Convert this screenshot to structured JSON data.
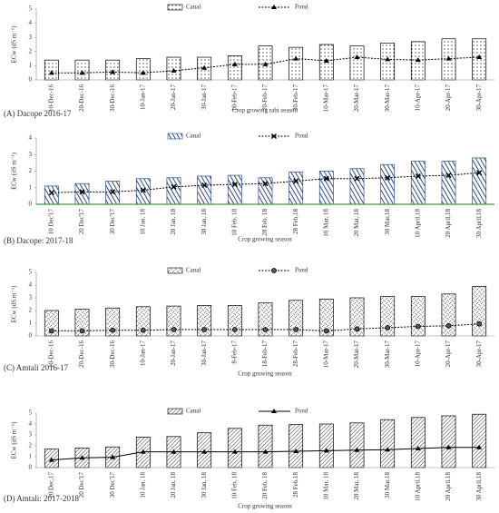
{
  "chart_data": [
    {
      "type": "combo",
      "panel_label": "(A) Dacope 2016-17",
      "y_label": "ECw (dS m⁻¹)",
      "x_label": "Crop growing rabi season",
      "categories": [
        "10-Dec-16",
        "20-Dec-16",
        "30-Dec-16",
        "10-Jan-17",
        "20-Jan-17",
        "30-Jan-17",
        "10-Feb-17",
        "20-Feb-17",
        "30-Feb-17",
        "10-Mar-17",
        "20-Mar-17",
        "30-Mar-17",
        "10-Apr-17",
        "20-Apr-17",
        "30-Apr-17"
      ],
      "ylim": [
        0,
        5
      ],
      "yticks": [
        0,
        1,
        2,
        3,
        4,
        5
      ],
      "bar_pattern": "dots",
      "marker": "triangle",
      "line_style": "dotted",
      "series": [
        {
          "name": "Canal",
          "color": "#000000",
          "values": [
            1.4,
            1.4,
            1.4,
            1.5,
            1.6,
            1.6,
            1.7,
            2.4,
            2.3,
            2.5,
            2.4,
            2.6,
            2.7,
            2.9,
            2.9
          ]
        },
        {
          "name": "Pond",
          "color": "#000000",
          "values": [
            0.5,
            0.5,
            0.55,
            0.5,
            0.65,
            0.85,
            1.1,
            1.1,
            1.5,
            1.35,
            1.6,
            1.45,
            1.4,
            1.5,
            1.6
          ]
        }
      ]
    },
    {
      "type": "combo",
      "panel_label": "(B) Dacope: 2017-18",
      "y_label": "ECw (dS m⁻¹)",
      "x_label": "Crop growing season",
      "categories": [
        "10 Dec'17",
        "20 Dec'17",
        "30 Dec'17",
        "10 Jan, 18",
        "20 Jan, 18",
        "30 Jan, 18",
        "10 Feb, 18",
        "20 Feb, 18",
        "28 Feb,18",
        "10 Mar, 18",
        "20 Mar, 18",
        "30 Mar,18",
        "10 April,18",
        "20 April,18",
        "30 April,18"
      ],
      "ylim": [
        0,
        4
      ],
      "yticks": [
        0,
        1,
        2,
        3,
        4
      ],
      "bar_pattern": "hlines",
      "marker": "cross",
      "line_style": "dotted",
      "axis_color": "#3a9a3a",
      "series": [
        {
          "name": "Canal",
          "color": "#2d4b8c",
          "values": [
            1.1,
            1.25,
            1.4,
            1.55,
            1.6,
            1.7,
            1.75,
            1.6,
            1.95,
            2.0,
            2.15,
            2.4,
            2.6,
            2.6,
            2.8
          ]
        },
        {
          "name": "Pond",
          "color": "#000000",
          "values": [
            0.7,
            0.75,
            0.75,
            0.85,
            1.05,
            1.15,
            1.2,
            1.25,
            1.4,
            1.55,
            1.55,
            1.6,
            1.7,
            1.75,
            1.9
          ]
        }
      ]
    },
    {
      "type": "combo",
      "panel_label": "(C) Amtali 2016-17",
      "y_label": "ECw (dS m⁻¹)",
      "x_label": "Crop growing season",
      "categories": [
        "10-Dec-16",
        "20-Dec-16",
        "30-Dec-16",
        "10-Jan-17",
        "20-Jan-17",
        "30-Jan-17",
        "8-Feb-17",
        "18-Feb-17",
        "28-Feb-17",
        "10-Mar-17",
        "20-Mar-17",
        "30-Mar-17",
        "10-Apr-17",
        "20-Apr-17",
        "30-Apr-17"
      ],
      "ylim": [
        0,
        5
      ],
      "yticks": [
        0,
        1,
        2,
        3,
        4,
        5
      ],
      "bar_pattern": "cross",
      "marker": "circle",
      "line_style": "dotted",
      "series": [
        {
          "name": "Canal",
          "color": "#000000",
          "values": [
            2.0,
            2.1,
            2.2,
            2.3,
            2.35,
            2.4,
            2.4,
            2.6,
            2.8,
            2.9,
            3.0,
            3.1,
            3.1,
            3.3,
            3.9
          ]
        },
        {
          "name": "Pond",
          "color": "#000000",
          "values": [
            0.4,
            0.4,
            0.45,
            0.45,
            0.5,
            0.5,
            0.5,
            0.5,
            0.5,
            0.4,
            0.55,
            0.65,
            0.75,
            0.8,
            0.95
          ]
        }
      ]
    },
    {
      "type": "combo",
      "panel_label": "(D) Amtali: 2017-2018",
      "y_label": "ECw (dS m⁻¹)",
      "x_label": "Crop growing season",
      "categories": [
        "10 Dec,17",
        "20 Dec'17",
        "30 Dec'17",
        "10 Jan, 18",
        "20 Jan, 18",
        "30 Jan, 18",
        "10 Feb, 18",
        "20 Feb, 18",
        "28 Feb,18",
        "10 Mar, 18",
        "20 Mar, 18",
        "30 Mar,18",
        "10 April,18",
        "20 April,18",
        "30 April,18"
      ],
      "ylim": [
        0,
        5
      ],
      "yticks": [
        0,
        1,
        2,
        3,
        4,
        5
      ],
      "bar_pattern": "diag",
      "marker": "triangle",
      "line_style": "solid",
      "series": [
        {
          "name": "Canal",
          "color": "#000000",
          "values": [
            1.7,
            1.8,
            1.9,
            2.8,
            2.85,
            3.2,
            3.6,
            3.9,
            3.95,
            4.0,
            4.1,
            4.4,
            4.6,
            4.75,
            4.9
          ]
        },
        {
          "name": "Pond",
          "color": "#000000",
          "values": [
            0.7,
            0.9,
            0.95,
            1.45,
            1.45,
            1.45,
            1.45,
            1.45,
            1.5,
            1.55,
            1.6,
            1.65,
            1.75,
            1.85,
            1.85
          ]
        }
      ]
    }
  ]
}
